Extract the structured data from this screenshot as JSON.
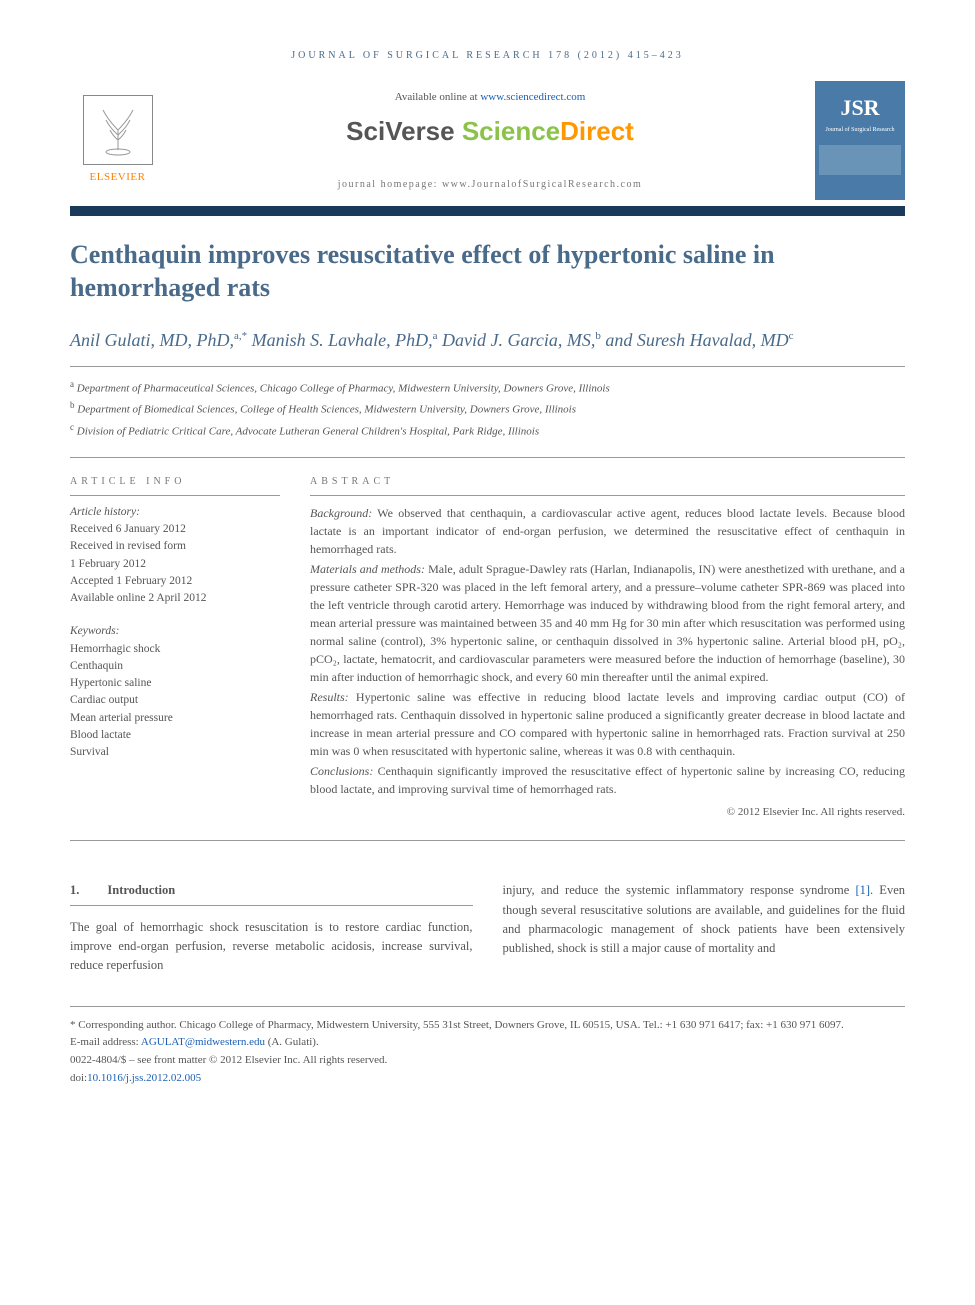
{
  "running_head": "JOURNAL OF SURGICAL RESEARCH 178 (2012) 415–423",
  "header": {
    "publisher_name": "ELSEVIER",
    "available_text": "Available online at ",
    "available_url": "www.sciencedirect.com",
    "brand_sv": "SciVerse ",
    "brand_sd1": "Science",
    "brand_sd2": "Direct",
    "homepage_label": "journal homepage: www.JournalofSurgicalResearch.com",
    "cover_abbrev": "JSR",
    "cover_sub": "Journal of Surgical Research"
  },
  "title": "Centhaquin improves resuscitative effect of hypertonic saline in hemorrhaged rats",
  "authors_html": "Anil Gulati, MD, PhD,<sup>a,*</sup> Manish S. Lavhale, PhD,<sup>a</sup> David J. Garcia, MS,<sup>b</sup> and Suresh Havalad, MD<sup>c</sup>",
  "affiliations": [
    {
      "mark": "a",
      "text": "Department of Pharmaceutical Sciences, Chicago College of Pharmacy, Midwestern University, Downers Grove, Illinois"
    },
    {
      "mark": "b",
      "text": "Department of Biomedical Sciences, College of Health Sciences, Midwestern University, Downers Grove, Illinois"
    },
    {
      "mark": "c",
      "text": "Division of Pediatric Critical Care, Advocate Lutheran General Children's Hospital, Park Ridge, Illinois"
    }
  ],
  "info": {
    "heading": "ARTICLE INFO",
    "history_label": "Article history:",
    "history": [
      "Received 6 January 2012",
      "Received in revised form",
      "1 February 2012",
      "Accepted 1 February 2012",
      "Available online 2 April 2012"
    ],
    "keywords_label": "Keywords:",
    "keywords": [
      "Hemorrhagic shock",
      "Centhaquin",
      "Hypertonic saline",
      "Cardiac output",
      "Mean arterial pressure",
      "Blood lactate",
      "Survival"
    ]
  },
  "abstract": {
    "heading": "ABSTRACT",
    "sections": [
      {
        "label": "Background:",
        "text": " We observed that centhaquin, a cardiovascular active agent, reduces blood lactate levels. Because blood lactate is an important indicator of end-organ perfusion, we determined the resuscitative effect of centhaquin in hemorrhaged rats."
      },
      {
        "label": "Materials and methods:",
        "text": " Male, adult Sprague-Dawley rats (Harlan, Indianapolis, IN) were anesthetized with urethane, and a pressure catheter SPR-320 was placed in the left femoral artery, and a pressure–volume catheter SPR-869 was placed into the left ventricle through carotid artery. Hemorrhage was induced by withdrawing blood from the right femoral artery, and mean arterial pressure was maintained between 35 and 40 mm Hg for 30 min after which resuscitation was performed using normal saline (control), 3% hypertonic saline, or centhaquin dissolved in 3% hypertonic saline. Arterial blood pH, pO₂, pCO₂, lactate, hematocrit, and cardiovascular parameters were measured before the induction of hemorrhage (baseline), 30 min after induction of hemorrhagic shock, and every 60 min thereafter until the animal expired."
      },
      {
        "label": "Results:",
        "text": " Hypertonic saline was effective in reducing blood lactate levels and improving cardiac output (CO) of hemorrhaged rats. Centhaquin dissolved in hypertonic saline produced a significantly greater decrease in blood lactate and increase in mean arterial pressure and CO compared with hypertonic saline in hemorrhaged rats. Fraction survival at 250 min was 0 when resuscitated with hypertonic saline, whereas it was 0.8 with centhaquin."
      },
      {
        "label": "Conclusions:",
        "text": " Centhaquin significantly improved the resuscitative effect of hypertonic saline by increasing CO, reducing blood lactate, and improving survival time of hemorrhaged rats."
      }
    ],
    "copyright": "© 2012 Elsevier Inc. All rights reserved."
  },
  "body": {
    "section_num": "1.",
    "section_title": "Introduction",
    "left": "The goal of hemorrhagic shock resuscitation is to restore cardiac function, improve end-organ perfusion, reverse metabolic acidosis, increase survival, reduce reperfusion",
    "right_pre": "injury, and reduce the systemic inflammatory response syndrome ",
    "right_ref": "[1]",
    "right_post": ". Even though several resuscitative solutions are available, and guidelines for the fluid and pharmacologic management of shock patients have been extensively published, shock is still a major cause of mortality and"
  },
  "footer": {
    "corr_label": "* Corresponding author.",
    "corr_text": " Chicago College of Pharmacy, Midwestern University, 555 31st Street, Downers Grove, IL 60515, USA. Tel.: +1 630 971 6417; fax: +1 630 971 6097.",
    "email_label": "E-mail address: ",
    "email": "AGULAT@midwestern.edu",
    "email_name": " (A. Gulati).",
    "issn": "0022-4804/$ – see front matter © 2012 Elsevier Inc. All rights reserved.",
    "doi_label": "doi:",
    "doi": "10.1016/j.jss.2012.02.005"
  },
  "colors": {
    "heading_blue": "#4a6a8a",
    "navy": "#1a3a5a",
    "link": "#1a5fb4",
    "orange": "#ff8000",
    "green": "#8bc34a",
    "cover_blue": "#4a7ba8"
  }
}
